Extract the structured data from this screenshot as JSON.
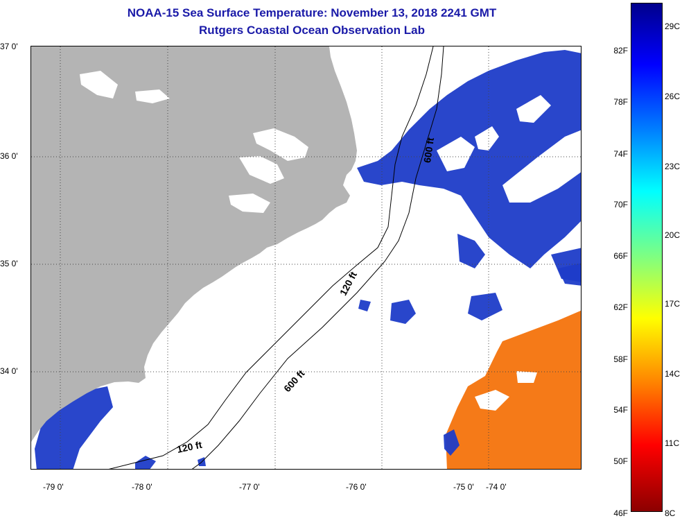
{
  "title": {
    "line1": "NOAA-15 Sea Surface Temperature:  November 13, 2018 2241 GMT",
    "line2": "Rutgers Coastal Ocean Observation Lab"
  },
  "map": {
    "lat_labels": [
      "37 0'",
      "36 0'",
      "35 0'",
      "34 0'"
    ],
    "lon_labels": [
      "-79 0'",
      "-78 0'",
      "-77 0'",
      "-76 0'",
      "-75 0'",
      "-74 0'"
    ],
    "isobath_labels": [
      "120 ft",
      "600 ft",
      "600 ft",
      "120 ft"
    ],
    "colors": {
      "land": "#b4b4b4",
      "cold_water": "#1e3cc8",
      "warm_water": "#f57a18",
      "cloud_mask": "#ffffff"
    }
  },
  "colorbar": {
    "fahrenheit_ticks": [
      "82F",
      "78F",
      "74F",
      "70F",
      "66F",
      "62F",
      "58F",
      "54F",
      "50F",
      "46F"
    ],
    "celsius_ticks": [
      "29C",
      "26C",
      "23C",
      "20C",
      "17C",
      "14C",
      "11C",
      "8C"
    ],
    "colors": [
      "#00008c",
      "#0000ff",
      "#0080ff",
      "#00ffff",
      "#80ff80",
      "#ffff00",
      "#ff8000",
      "#ff0000",
      "#8c0000"
    ]
  }
}
